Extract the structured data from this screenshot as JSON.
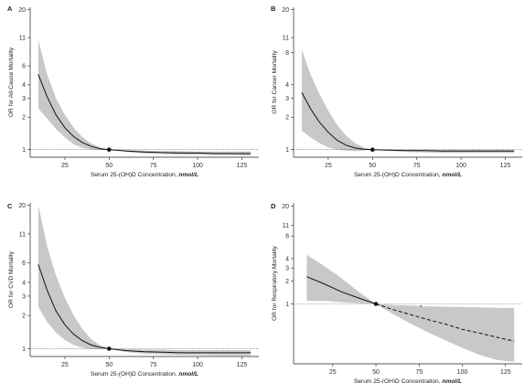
{
  "chart_data": [
    {
      "panel": "A",
      "type": "line",
      "xlabel": "Serum 25-(OH)D Concentration, nmol/L",
      "ylabel": "OR for All-Cause Mortality",
      "xlim": [
        8,
        132
      ],
      "ylim": [
        0.85,
        21
      ],
      "yscale": "log",
      "xticks": [
        25,
        50,
        75,
        100,
        125
      ],
      "yticks": [
        1,
        2,
        3,
        4,
        6,
        11,
        20
      ],
      "reference_y": 1,
      "reference_point": {
        "x": 50,
        "y": 1
      },
      "series": [
        {
          "kind": "estimate",
          "style": "solid",
          "x": [
            10,
            15,
            20,
            25,
            30,
            35,
            40,
            45,
            50,
            60,
            70,
            80,
            90,
            100,
            110,
            120,
            130
          ],
          "y": [
            5.0,
            3.1,
            2.1,
            1.6,
            1.32,
            1.16,
            1.07,
            1.02,
            1.0,
            0.97,
            0.95,
            0.94,
            0.93,
            0.93,
            0.92,
            0.92,
            0.92
          ]
        },
        {
          "kind": "ci_upper",
          "x": [
            10,
            15,
            20,
            25,
            30,
            35,
            40,
            45,
            50,
            60,
            70,
            80,
            90,
            100,
            110,
            120,
            130
          ],
          "y": [
            10.5,
            5.0,
            3.0,
            2.1,
            1.6,
            1.3,
            1.14,
            1.05,
            1.0,
            0.99,
            0.98,
            0.97,
            0.97,
            0.96,
            0.96,
            0.96,
            0.96
          ]
        },
        {
          "kind": "ci_lower",
          "x": [
            10,
            15,
            20,
            25,
            30,
            35,
            40,
            45,
            50,
            60,
            70,
            80,
            90,
            100,
            110,
            120,
            130
          ],
          "y": [
            2.4,
            1.95,
            1.55,
            1.3,
            1.12,
            1.04,
            1.0,
            0.99,
            1.0,
            0.95,
            0.92,
            0.91,
            0.9,
            0.9,
            0.89,
            0.89,
            0.88
          ]
        }
      ]
    },
    {
      "panel": "B",
      "type": "line",
      "xlabel": "Serum 25-(OH)D Concentration, nmol/L",
      "ylabel": "OR for Cancer Mortality",
      "xlim": [
        8,
        132
      ],
      "ylim": [
        0.85,
        21
      ],
      "yscale": "log",
      "xticks": [
        25,
        50,
        75,
        100,
        125
      ],
      "yticks": [
        1,
        2,
        3,
        4,
        8,
        11,
        20
      ],
      "reference_y": 1,
      "reference_point": {
        "x": 50,
        "y": 1
      },
      "series": [
        {
          "kind": "estimate",
          "style": "solid",
          "x": [
            10,
            15,
            20,
            25,
            30,
            35,
            40,
            45,
            50,
            60,
            70,
            80,
            90,
            100,
            110,
            120,
            130
          ],
          "y": [
            3.4,
            2.4,
            1.8,
            1.45,
            1.22,
            1.1,
            1.04,
            1.01,
            1.0,
            0.99,
            0.98,
            0.98,
            0.97,
            0.97,
            0.97,
            0.97,
            0.97
          ]
        },
        {
          "kind": "ci_upper",
          "x": [
            10,
            15,
            20,
            25,
            30,
            35,
            40,
            45,
            50,
            60,
            70,
            80,
            90,
            100,
            110,
            120,
            130
          ],
          "y": [
            8.5,
            5.0,
            3.3,
            2.3,
            1.7,
            1.35,
            1.15,
            1.05,
            1.0,
            1.0,
            1.0,
            1.0,
            1.0,
            1.0,
            1.0,
            1.0,
            1.0
          ]
        },
        {
          "kind": "ci_lower",
          "x": [
            10,
            15,
            20,
            25,
            30,
            35,
            40,
            45,
            50,
            60,
            70,
            80,
            90,
            100,
            110,
            120,
            130
          ],
          "y": [
            1.5,
            1.3,
            1.15,
            1.05,
            1.0,
            0.98,
            0.97,
            0.98,
            1.0,
            0.97,
            0.95,
            0.94,
            0.93,
            0.93,
            0.93,
            0.93,
            0.93
          ]
        }
      ]
    },
    {
      "panel": "C",
      "type": "line",
      "xlabel": "Serum 25-(OH)D Concentration, nmol/L",
      "ylabel": "OR for CVD Mortality",
      "xlim": [
        8,
        132
      ],
      "ylim": [
        0.85,
        21
      ],
      "yscale": "log",
      "xticks": [
        25,
        50,
        75,
        100,
        125
      ],
      "yticks": [
        1,
        2,
        3,
        4,
        6,
        11,
        20
      ],
      "reference_y": 1,
      "reference_point": {
        "x": 50,
        "y": 1
      },
      "series": [
        {
          "kind": "estimate",
          "style": "solid",
          "x": [
            10,
            15,
            20,
            25,
            30,
            35,
            40,
            45,
            50,
            60,
            70,
            80,
            90,
            100,
            110,
            120,
            130
          ],
          "y": [
            5.8,
            3.4,
            2.2,
            1.65,
            1.35,
            1.18,
            1.08,
            1.03,
            1.0,
            0.96,
            0.94,
            0.93,
            0.92,
            0.92,
            0.92,
            0.92,
            0.92
          ]
        },
        {
          "kind": "ci_upper",
          "x": [
            10,
            15,
            20,
            25,
            30,
            35,
            40,
            45,
            50,
            60,
            70,
            80,
            90,
            100,
            110,
            120,
            130
          ],
          "y": [
            20,
            8.5,
            4.6,
            2.9,
            2.0,
            1.5,
            1.22,
            1.07,
            1.0,
            0.99,
            0.98,
            0.98,
            0.97,
            0.97,
            0.97,
            0.97,
            0.97
          ]
        },
        {
          "kind": "ci_lower",
          "x": [
            10,
            15,
            20,
            25,
            30,
            35,
            40,
            45,
            50,
            60,
            70,
            80,
            90,
            100,
            110,
            120,
            130
          ],
          "y": [
            2.4,
            1.75,
            1.4,
            1.2,
            1.08,
            1.02,
            0.99,
            0.99,
            1.0,
            0.93,
            0.9,
            0.89,
            0.88,
            0.88,
            0.87,
            0.87,
            0.87
          ]
        }
      ]
    },
    {
      "panel": "D",
      "type": "line",
      "xlabel": "Serum 25-(OH)D Concentration, nmol/L",
      "ylabel": "OR for Respiratory Mortality",
      "xlim": [
        5,
        132
      ],
      "ylim": [
        0.16,
        22
      ],
      "yscale": "log",
      "xticks": [
        25,
        50,
        75,
        100,
        125
      ],
      "yticks": [
        1,
        2,
        3,
        4,
        8,
        11,
        20
      ],
      "reference_y": 1,
      "reference_point": {
        "x": 50,
        "y": 1
      },
      "annotation": {
        "text": "*",
        "x": 76,
        "y": 0.86
      },
      "series": [
        {
          "kind": "estimate",
          "style": "solid",
          "x": [
            10,
            20,
            30,
            40,
            50
          ],
          "y": [
            2.3,
            1.85,
            1.45,
            1.2,
            1.0
          ]
        },
        {
          "kind": "estimate",
          "style": "dashed",
          "x": [
            50,
            60,
            70,
            80,
            90,
            100,
            110,
            120,
            130
          ],
          "y": [
            1.0,
            0.84,
            0.72,
            0.62,
            0.54,
            0.46,
            0.41,
            0.36,
            0.32
          ]
        },
        {
          "kind": "ci_upper",
          "x": [
            10,
            20,
            30,
            40,
            50,
            60,
            70,
            80,
            90,
            100,
            110,
            120,
            130
          ],
          "y": [
            4.5,
            3.2,
            2.2,
            1.45,
            1.0,
            0.97,
            0.95,
            0.93,
            0.92,
            0.91,
            0.9,
            0.89,
            0.88
          ]
        },
        {
          "kind": "ci_lower",
          "x": [
            10,
            20,
            30,
            40,
            50,
            60,
            70,
            80,
            90,
            100,
            110,
            120,
            130
          ],
          "y": [
            1.1,
            1.1,
            1.05,
            1.02,
            1.0,
            0.73,
            0.55,
            0.42,
            0.33,
            0.26,
            0.21,
            0.18,
            0.17
          ]
        }
      ]
    }
  ]
}
